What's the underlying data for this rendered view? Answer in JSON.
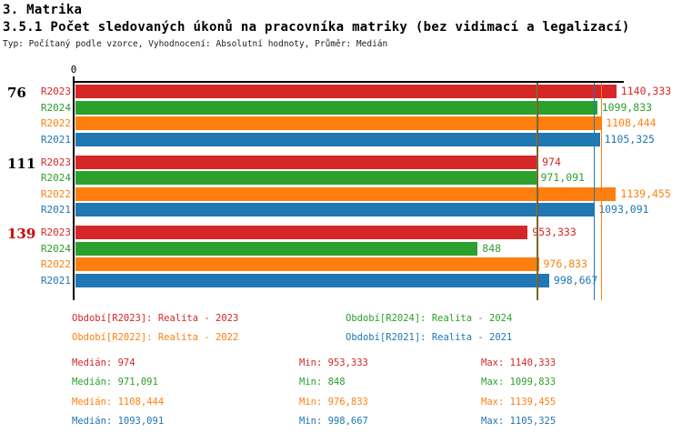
{
  "header": {
    "title": "3. Matrika",
    "subtitle": "3.5.1 Počet sledovaných úkonů na pracovníka matriky (bez vidimací a legalizací)",
    "meta": "Typ: Počítaný podle vzorce, Vyhodnocení: Absolutní hodnoty, Průměr: Medián"
  },
  "colors": {
    "R2023": "#d62728",
    "R2024": "#2ca02c",
    "R2022": "#ff7f0e",
    "R2021": "#1f77b4",
    "axis": "#000000",
    "group_label_default": "#000000",
    "group_label_alert": "#cc0000"
  },
  "chart_data": {
    "type": "bar",
    "orientation": "horizontal",
    "title": "3.5.1 Počet sledovaných úkonů na pracovníka matriky (bez vidimací a legalizací)",
    "x_axis": {
      "zero_label": "0",
      "xlim": [
        0,
        1156
      ],
      "grid": false
    },
    "series_order": [
      "R2023",
      "R2024",
      "R2022",
      "R2021"
    ],
    "groups": [
      {
        "label": "76",
        "label_color": "#000000",
        "bars": [
          {
            "series": "R2023",
            "value": 1140.333,
            "value_label": "1140,333"
          },
          {
            "series": "R2024",
            "value": 1099.833,
            "value_label": "1099,833"
          },
          {
            "series": "R2022",
            "value": 1108.444,
            "value_label": "1108,444"
          },
          {
            "series": "R2021",
            "value": 1105.325,
            "value_label": "1105,325"
          }
        ]
      },
      {
        "label": "111",
        "label_color": "#000000",
        "bars": [
          {
            "series": "R2023",
            "value": 974,
            "value_label": "974"
          },
          {
            "series": "R2024",
            "value": 971.091,
            "value_label": "971,091"
          },
          {
            "series": "R2022",
            "value": 1139.455,
            "value_label": "1139,455"
          },
          {
            "series": "R2021",
            "value": 1093.091,
            "value_label": "1093,091"
          }
        ]
      },
      {
        "label": "139",
        "label_color": "#cc0000",
        "bars": [
          {
            "series": "R2023",
            "value": 953.333,
            "value_label": "953,333"
          },
          {
            "series": "R2024",
            "value": 848,
            "value_label": "848"
          },
          {
            "series": "R2022",
            "value": 976.833,
            "value_label": "976,833"
          },
          {
            "series": "R2021",
            "value": 998.667,
            "value_label": "998,667"
          }
        ]
      }
    ],
    "median_lines": [
      {
        "series": "R2024",
        "value": 971.091
      },
      {
        "series": "R2023",
        "value": 974
      },
      {
        "series": "R2021",
        "value": 1093.091
      },
      {
        "series": "R2022",
        "value": 1108.444
      }
    ]
  },
  "legend": {
    "items": [
      {
        "series": "R2023",
        "text": "Období[R2023]: Realita - 2023"
      },
      {
        "series": "R2024",
        "text": "Období[R2024]: Realita - 2024"
      },
      {
        "series": "R2022",
        "text": "Období[R2022]: Realita - 2022"
      },
      {
        "series": "R2021",
        "text": "Období[R2021]: Realita - 2021"
      }
    ]
  },
  "stats": {
    "rows": [
      {
        "series": "R2023",
        "median": "Medián: 974",
        "min": "Min: 953,333",
        "max": "Max: 1140,333"
      },
      {
        "series": "R2024",
        "median": "Medián: 971,091",
        "min": "Min: 848",
        "max": "Max: 1099,833"
      },
      {
        "series": "R2022",
        "median": "Medián: 1108,444",
        "min": "Min: 976,833",
        "max": "Max: 1139,455"
      },
      {
        "series": "R2021",
        "median": "Medián: 1093,091",
        "min": "Min: 998,667",
        "max": "Max: 1105,325"
      }
    ]
  }
}
